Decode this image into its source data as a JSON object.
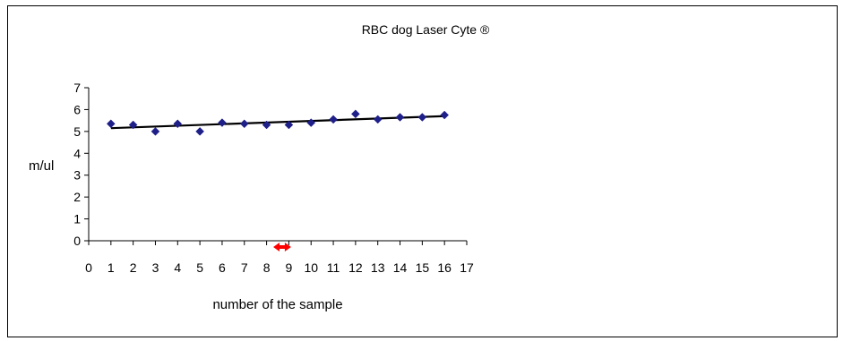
{
  "chart_data": {
    "type": "scatter",
    "title": "RBC dog Laser Cyte ®",
    "xlabel": "number of the sample",
    "ylabel": "m/ul",
    "xlim": [
      0,
      17
    ],
    "ylim": [
      0,
      7
    ],
    "x_ticks": [
      0,
      1,
      2,
      3,
      4,
      5,
      6,
      7,
      8,
      9,
      10,
      11,
      12,
      13,
      14,
      15,
      16,
      17
    ],
    "y_ticks": [
      0,
      1,
      2,
      3,
      4,
      5,
      6,
      7
    ],
    "grid": false,
    "legend": "none",
    "series": [
      {
        "marker": "diamond",
        "color": "#1F1F8A",
        "x": [
          1,
          2,
          3,
          4,
          5,
          6,
          7,
          8,
          9,
          10,
          11,
          12,
          13,
          14,
          15,
          16
        ],
        "y": [
          5.35,
          5.3,
          5.0,
          5.35,
          5.0,
          5.4,
          5.35,
          5.3,
          5.3,
          5.4,
          5.55,
          5.8,
          5.55,
          5.65,
          5.65,
          5.75
        ]
      }
    ],
    "trendline": {
      "type": "linear",
      "color": "#000000",
      "x": [
        1,
        16
      ],
      "y": [
        5.15,
        5.7
      ]
    },
    "annotation": {
      "type": "double-arrow",
      "color": "#FF0000",
      "x": [
        8.3,
        9.1
      ]
    }
  }
}
